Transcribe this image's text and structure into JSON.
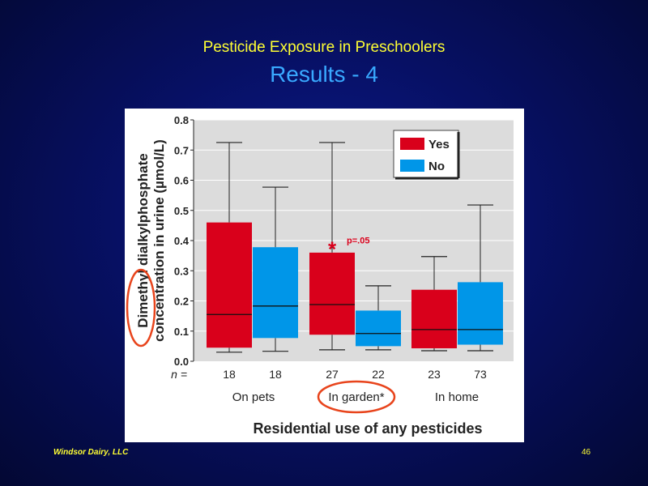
{
  "slide": {
    "title": "Pesticide Exposure in Preschoolers",
    "subtitle": "Results - 4",
    "footer_left": "Windsor Dairy, LLC",
    "page_number": "46"
  },
  "colors": {
    "yes": "#d9001b",
    "no": "#0096e8",
    "highlight": "#e8441c",
    "title": "#ffff33",
    "subtitle": "#39a9ff"
  },
  "chart_data": {
    "type": "box",
    "title": "",
    "ylabel_line1": "Dimethyl dialkylphosphate",
    "ylabel_line2": "concentration in urine (µmol/L)",
    "xlabel": "Residential use of any pesticides",
    "ylim": [
      0,
      0.8
    ],
    "yticks": [
      "0.0",
      "0.1",
      "0.2",
      "0.3",
      "0.4",
      "0.5",
      "0.6",
      "0.7",
      "0.8"
    ],
    "grid": true,
    "legend_position": "top-right",
    "n_label": "n =",
    "groups": [
      {
        "label": "On pets"
      },
      {
        "label": "In garden*"
      },
      {
        "label": "In home"
      }
    ],
    "series": [
      {
        "name": "Yes"
      },
      {
        "name": "No"
      }
    ],
    "boxes": [
      {
        "group": 0,
        "series": "Yes",
        "n": "18",
        "min": 0.03,
        "q1": 0.045,
        "median": 0.155,
        "q3": 0.46,
        "max": 0.725
      },
      {
        "group": 0,
        "series": "No",
        "n": "18",
        "min": 0.033,
        "q1": 0.077,
        "median": 0.183,
        "q3": 0.378,
        "max": 0.577
      },
      {
        "group": 1,
        "series": "Yes",
        "n": "27",
        "min": 0.038,
        "q1": 0.088,
        "median": 0.188,
        "q3": 0.36,
        "max": 0.725
      },
      {
        "group": 1,
        "series": "No",
        "n": "22",
        "min": 0.038,
        "q1": 0.05,
        "median": 0.092,
        "q3": 0.168,
        "max": 0.25
      },
      {
        "group": 2,
        "series": "Yes",
        "n": "23",
        "min": 0.035,
        "q1": 0.043,
        "median": 0.105,
        "q3": 0.237,
        "max": 0.347
      },
      {
        "group": 2,
        "series": "No",
        "n": "73",
        "min": 0.035,
        "q1": 0.055,
        "median": 0.105,
        "q3": 0.262,
        "max": 0.518
      }
    ],
    "annotation": {
      "text": "p=.05",
      "marker": "*",
      "y": 0.385
    }
  }
}
